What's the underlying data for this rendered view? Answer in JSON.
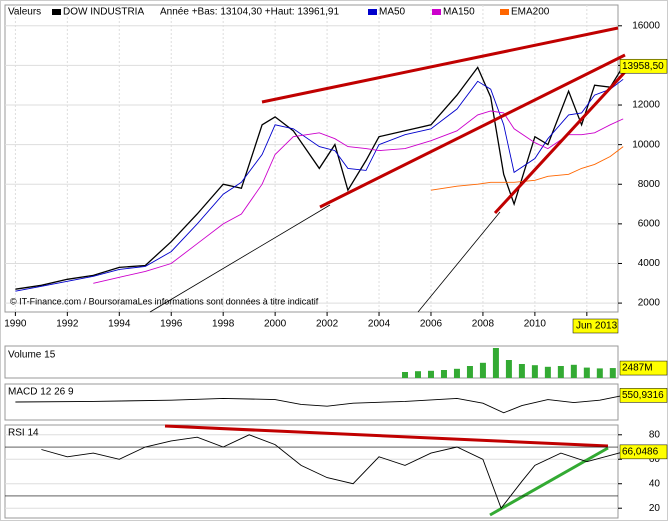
{
  "chart_data": [
    {
      "type": "line",
      "title": "Valeurs",
      "subtitle": "Année +Bas: 13104,30 +Haut: 13961,91",
      "source": "© IT-Finance.com / BoursoramaLes informations sont données à titre indicatif",
      "last_label": "13958,50",
      "period_label": "Jun 2013",
      "x": [
        1990,
        1991,
        1992,
        1993,
        1994,
        1995,
        1996,
        1997,
        1998,
        1998.7,
        1999.5,
        2000,
        2000.7,
        2001.7,
        2002.3,
        2002.8,
        2003.5,
        2004,
        2005,
        2006,
        2007,
        2007.8,
        2008.3,
        2008.8,
        2009.2,
        2010,
        2010.5,
        2011.3,
        2011.8,
        2012.3,
        2012.9,
        2013.4
      ],
      "series": [
        {
          "name": "DOW INDUSTRIA",
          "color": "#000000",
          "values": [
            2700,
            2900,
            3200,
            3400,
            3800,
            3900,
            5100,
            6500,
            8000,
            7800,
            11000,
            11400,
            10700,
            8800,
            10000,
            7700,
            9200,
            10400,
            10700,
            11000,
            12500,
            13900,
            12400,
            8500,
            7000,
            10400,
            10000,
            12700,
            11000,
            13000,
            12900,
            13958.5
          ]
        },
        {
          "name": "MA50",
          "color": "#0000cc",
          "values": [
            2600,
            2850,
            3100,
            3350,
            3700,
            3850,
            4600,
            6000,
            7500,
            8100,
            9500,
            11000,
            10800,
            9900,
            9700,
            8800,
            8700,
            10000,
            10500,
            10800,
            11800,
            13200,
            12800,
            11000,
            8600,
            9300,
            10300,
            11500,
            11600,
            12500,
            12800,
            13300
          ]
        },
        {
          "name": "MA150",
          "color": "#cc00cc",
          "values": [
            null,
            null,
            null,
            3000,
            3300,
            3600,
            4000,
            5000,
            6000,
            6500,
            8000,
            9500,
            10400,
            10600,
            10300,
            9900,
            9800,
            9700,
            9800,
            10200,
            10700,
            11500,
            11700,
            11600,
            10800,
            10100,
            9800,
            10500,
            10500,
            10600,
            11000,
            11300
          ]
        },
        {
          "name": "EMA200",
          "color": "#ff6600",
          "values": [
            null,
            null,
            null,
            null,
            null,
            null,
            null,
            null,
            null,
            null,
            null,
            null,
            null,
            null,
            null,
            null,
            null,
            null,
            null,
            7700,
            7900,
            8000,
            8100,
            8100,
            8100,
            8200,
            8400,
            8500,
            8800,
            9000,
            9400,
            9900
          ]
        }
      ],
      "xlim": [
        1989.6,
        2013.2
      ],
      "xticks": [
        1990,
        1992,
        1994,
        1996,
        1998,
        2000,
        2002,
        2004,
        2006,
        2008,
        2010,
        2012
      ],
      "ylim": [
        1550,
        17050
      ],
      "yticks": [
        2000,
        4000,
        6000,
        8000,
        10000,
        12000,
        14000,
        16000
      ],
      "grid": true
    },
    {
      "type": "bar",
      "title": "Volume 15",
      "last_label": "2487M",
      "color": "#33aa33",
      "x": [
        2005,
        2005.5,
        2006,
        2006.5,
        2007,
        2007.5,
        2008,
        2008.5,
        2009,
        2009.5,
        2010,
        2010.5,
        2011,
        2011.5,
        2012,
        2012.5,
        2013
      ],
      "values": [
        1500,
        1700,
        1800,
        2000,
        2300,
        3000,
        3800,
        7500,
        4500,
        3500,
        3200,
        2800,
        3000,
        3300,
        2600,
        2400,
        2487
      ],
      "xlim": [
        1989.6,
        2013.2
      ],
      "ylim": [
        0,
        8000
      ]
    },
    {
      "type": "line",
      "title": "MACD 12 26 9",
      "last_label": "550,9316",
      "color": "#000000",
      "x": [
        1990,
        1993,
        1996,
        1998,
        2000,
        2001,
        2002,
        2003,
        2005,
        2007,
        2008,
        2008.8,
        2009.5,
        2010.5,
        2011.5,
        2012.5,
        2013.4
      ],
      "values": [
        0,
        50,
        150,
        300,
        200,
        -200,
        -350,
        -100,
        50,
        300,
        -100,
        -900,
        -300,
        200,
        -50,
        150,
        550.9316
      ],
      "xlim": [
        1989.6,
        2013.2
      ],
      "ylim": [
        -1500,
        1500
      ]
    },
    {
      "type": "line",
      "title": "RSI 14",
      "last_label": "66,0486",
      "color": "#000000",
      "x": [
        1991,
        1992,
        1993,
        1994,
        1995,
        1996,
        1997,
        1998,
        1999,
        2000,
        2001,
        2002,
        2003,
        2004,
        2005,
        2006,
        2007,
        2008,
        2008.7,
        2009.5,
        2010,
        2011,
        2012,
        2013.4
      ],
      "values": [
        68,
        62,
        65,
        60,
        70,
        75,
        78,
        70,
        80,
        72,
        55,
        45,
        40,
        62,
        55,
        65,
        70,
        60,
        20,
        42,
        55,
        65,
        58,
        66.0486
      ],
      "xlim": [
        1989.6,
        2013.2
      ],
      "ylim": [
        12,
        88
      ],
      "yticks": [
        20,
        40,
        60,
        80
      ],
      "levels": [
        30,
        70
      ]
    }
  ]
}
